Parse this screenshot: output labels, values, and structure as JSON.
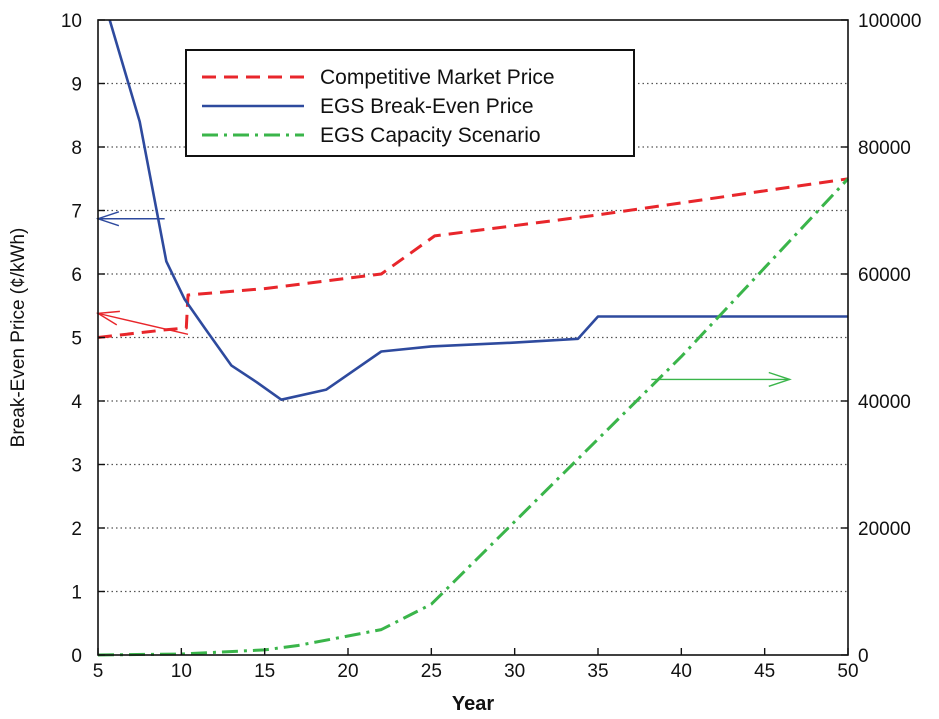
{
  "chart_data": {
    "type": "line",
    "title": "",
    "xlabel": "Year",
    "ylabel": "Break-Even Price (¢/kWh)",
    "y2label": "",
    "xlim": [
      5,
      50
    ],
    "ylim": [
      0,
      10
    ],
    "y2lim": [
      0,
      100000
    ],
    "x_ticks": [
      5,
      10,
      15,
      20,
      25,
      30,
      35,
      40,
      45,
      50
    ],
    "y_ticks": [
      0,
      1,
      2,
      3,
      4,
      5,
      6,
      7,
      8,
      9,
      10
    ],
    "y2_ticks": [
      0,
      20000,
      40000,
      60000,
      80000,
      100000
    ],
    "grid": "horizontal dotted",
    "legend_position": "top-left",
    "series": [
      {
        "name": "Competitive Market Price",
        "axis": "left",
        "color": "#e8262b",
        "style": "dashed",
        "points": [
          [
            5,
            5.0
          ],
          [
            9,
            5.12
          ],
          [
            10.3,
            5.15
          ],
          [
            10.4,
            5.67
          ],
          [
            15,
            5.77
          ],
          [
            22,
            6.0
          ],
          [
            25.2,
            6.6
          ],
          [
            35,
            6.93
          ],
          [
            50,
            7.5
          ]
        ]
      },
      {
        "name": "EGS Break-Even Price",
        "axis": "left",
        "color": "#2e4a9e",
        "style": "solid",
        "points": [
          [
            5.7,
            10.0
          ],
          [
            7.5,
            8.4
          ],
          [
            9.1,
            6.2
          ],
          [
            10.2,
            5.6
          ],
          [
            11.4,
            5.15
          ],
          [
            13.0,
            4.56
          ],
          [
            14.5,
            4.3
          ],
          [
            16.0,
            4.02
          ],
          [
            18.7,
            4.18
          ],
          [
            22.0,
            4.78
          ],
          [
            25.0,
            4.86
          ],
          [
            30.0,
            4.92
          ],
          [
            33.8,
            4.98
          ],
          [
            35.0,
            5.33
          ],
          [
            50.0,
            5.33
          ]
        ]
      },
      {
        "name": "EGS Capacity Scenario",
        "axis": "right",
        "color": "#3ab54a",
        "style": "dash-dot",
        "points": [
          [
            5,
            0
          ],
          [
            10,
            150
          ],
          [
            15,
            800
          ],
          [
            17,
            1500
          ],
          [
            20,
            3000
          ],
          [
            22,
            4000
          ],
          [
            25,
            8000
          ],
          [
            30,
            21000
          ],
          [
            35,
            34000
          ],
          [
            40,
            47000
          ],
          [
            45,
            61000
          ],
          [
            50,
            75000
          ]
        ]
      }
    ],
    "annotations": [
      {
        "type": "arrow",
        "direction": "left",
        "color": "#2e4a9e",
        "from": [
          9,
          6.87
        ],
        "to": [
          5,
          6.87
        ]
      },
      {
        "type": "arrow",
        "direction": "left",
        "color": "#e8262b",
        "from": [
          10.4,
          5.05
        ],
        "to": [
          5,
          5.38
        ]
      },
      {
        "type": "arrow",
        "direction": "right",
        "color": "#3ab54a",
        "from": [
          38.2,
          4.34
        ],
        "to": [
          46.5,
          4.34
        ]
      }
    ],
    "colors": {
      "market": "#e8262b",
      "breakeven": "#2e4a9e",
      "capacity": "#3ab54a"
    }
  }
}
